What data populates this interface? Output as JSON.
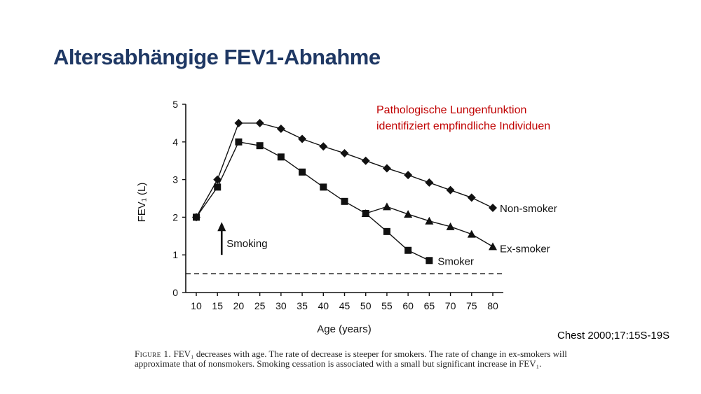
{
  "slide": {
    "title": "Altersabhängige FEV1-Abnahme",
    "annotation_lines": [
      "Pathologische Lungenfunktion",
      "identifiziert empfindliche Individuen"
    ],
    "citation": "Chest 2000;17:15S-19S",
    "caption": {
      "figure_label": "Figure 1.",
      "text": "FEV₁ decreases with age. The rate of decrease is steeper for smokers. The rate of change in ex-smokers will approximate that of nonsmokers. Smoking cessation is associated with a small but significant increase in FEV₁."
    },
    "colors": {
      "title": "#1f3864",
      "annotation": "#c00000",
      "chart_ink": "#111111"
    }
  },
  "chart_data": {
    "type": "line",
    "xlabel": "Age (years)",
    "ylabel": "FEV₁ (L)",
    "xlim": [
      10,
      80
    ],
    "ylim": [
      0,
      5
    ],
    "xticks": [
      10,
      15,
      20,
      25,
      30,
      35,
      40,
      45,
      50,
      55,
      60,
      65,
      70,
      75,
      80
    ],
    "yticks": [
      0,
      1,
      2,
      3,
      4,
      5
    ],
    "grid": false,
    "legend": "inline labels at line ends",
    "series": [
      {
        "name": "Non-smoker",
        "marker": "diamond",
        "x": [
          10,
          15,
          20,
          25,
          30,
          35,
          40,
          45,
          50,
          55,
          60,
          65,
          70,
          75,
          80
        ],
        "y": [
          2.0,
          3.0,
          4.5,
          4.5,
          4.35,
          4.08,
          3.88,
          3.7,
          3.5,
          3.3,
          3.12,
          2.92,
          2.72,
          2.52,
          2.25
        ]
      },
      {
        "name": "Smoker",
        "marker": "square",
        "x": [
          10,
          15,
          20,
          25,
          30,
          35,
          40,
          45,
          50,
          55,
          60,
          65
        ],
        "y": [
          2.0,
          2.8,
          4.0,
          3.9,
          3.6,
          3.2,
          2.8,
          2.42,
          2.1,
          1.62,
          1.12,
          0.85
        ]
      },
      {
        "name": "Ex-smoker",
        "marker": "triangle",
        "x": [
          50,
          55,
          60,
          65,
          70,
          75,
          80
        ],
        "y": [
          2.1,
          2.28,
          2.08,
          1.9,
          1.75,
          1.55,
          1.22
        ]
      }
    ],
    "threshold_line": {
      "y": 0.5,
      "style": "dashed"
    },
    "annotations": [
      {
        "text": "Smoking",
        "x": 16,
        "y": 1.0,
        "arrow": "up"
      }
    ]
  }
}
